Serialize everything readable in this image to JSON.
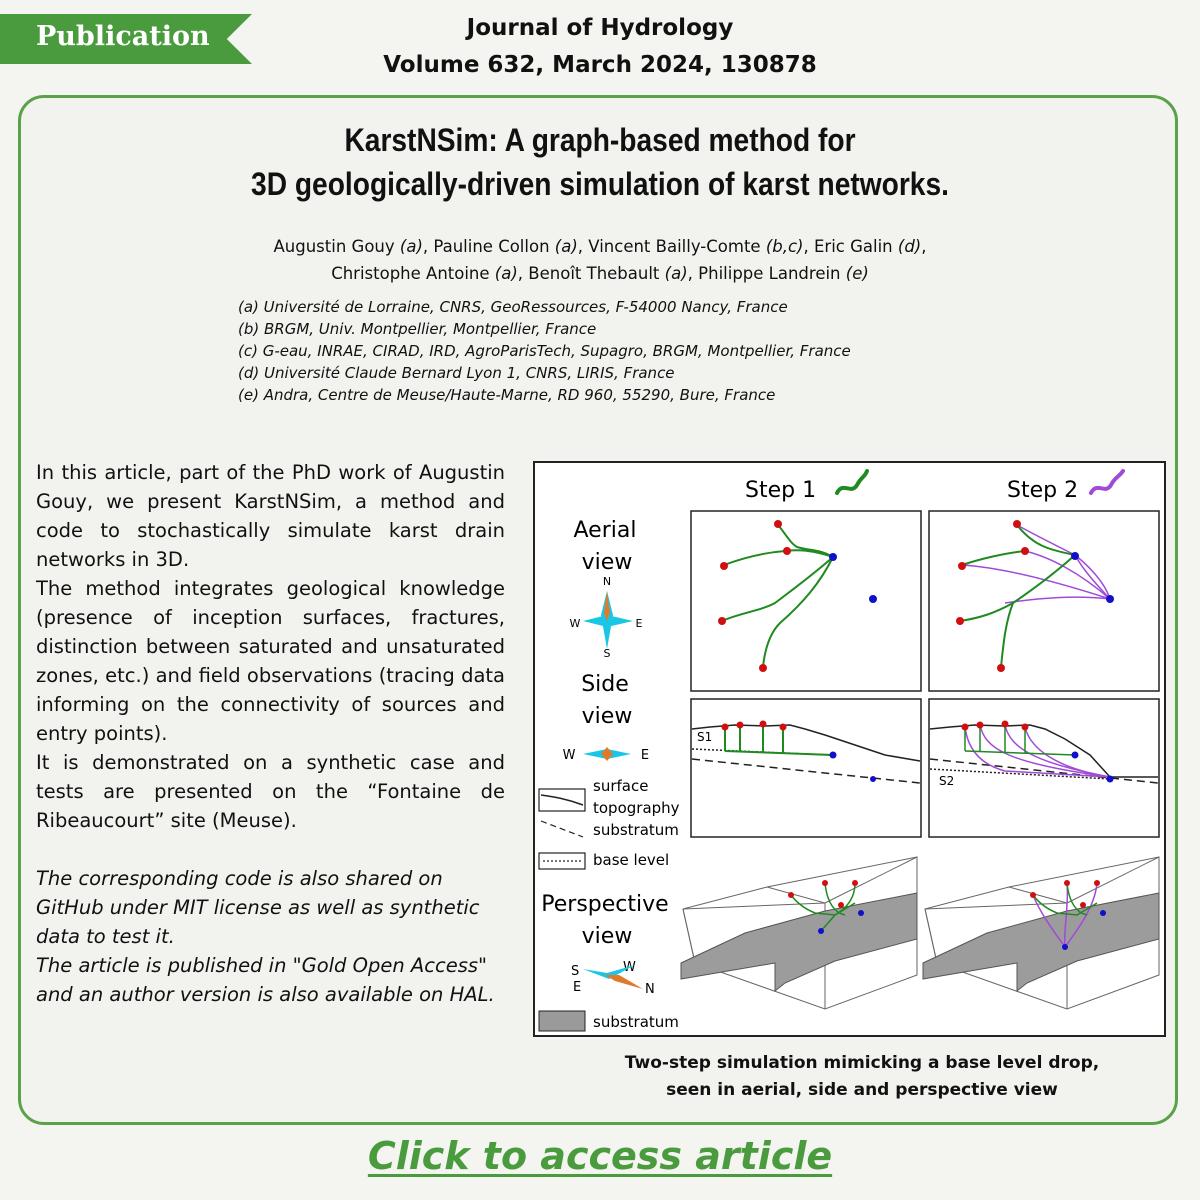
{
  "header": {
    "badge": "Publication",
    "journal_line1": "Journal of Hydrology",
    "journal_line2": "Volume 632, March 2024, 130878"
  },
  "article": {
    "title_line1": "KarstNSim: A graph-based method for",
    "title_line2": "3D geologically-driven simulation of karst networks.",
    "authors": [
      {
        "name": "Augustin Gouy",
        "aff": "(a)"
      },
      {
        "name": "Pauline Collon",
        "aff": "(a)"
      },
      {
        "name": "Vincent Bailly-Comte",
        "aff": "(b,c)"
      },
      {
        "name": "Eric Galin",
        "aff": "(d)"
      },
      {
        "name": "Christophe Antoine",
        "aff": "(a)"
      },
      {
        "name": "Benoît Thebault",
        "aff": "(a)"
      },
      {
        "name": "Philippe Landrein",
        "aff": "(e)"
      }
    ],
    "affiliations": [
      "(a) Université de Lorraine, CNRS, GeoRessources, F-54000 Nancy, France",
      "(b) BRGM, Univ. Montpellier, Montpellier, France",
      "(c) G-eau, INRAE, CIRAD, IRD, AgroParisTech, Supagro, BRGM, Montpellier, France",
      "(d) Université Claude Bernard Lyon 1, CNRS, LIRIS, France",
      "(e) Andra, Centre de Meuse/Haute-Marne, RD 960, 55290, Bure, France"
    ]
  },
  "body": {
    "p1": "In this article, part of the PhD work of Augustin Gouy, we present KarstNSim, a method and code to stochastically simulate karst drain networks in 3D.",
    "p2": "The method integrates geological knowledge (presence of inception surfaces, fractures, distinction between saturated and unsaturated zones, etc.) and field observations (tracing data informing on the connectivity of sources and entry points).",
    "p3": "It is demonstrated on a synthetic case and tests are presented on the “Fontaine de Ribeaucourt” site (Meuse).",
    "p4": "The corresponding code is also shared on GitHub under MIT license as well as synthetic data to test it.",
    "p5": "The article is published in \"Gold Open Access\" and an author version is also available on HAL."
  },
  "figure": {
    "step1": "Step 1",
    "step2": "Step 2",
    "aerial_1": "Aerial",
    "aerial_2": "view",
    "side_1": "Side",
    "side_2": "view",
    "persp_1": "Perspective",
    "persp_2": "view",
    "compass_n": "N",
    "compass_s": "S",
    "compass_e": "E",
    "compass_w": "W",
    "legend_surface_1": "surface",
    "legend_surface_2": "topography",
    "legend_substratum": "substratum",
    "legend_base": "base level",
    "legend_substratum_3d": "substratum",
    "s1_label": "S1",
    "s2_label": "S2",
    "colors": {
      "step1": "#1f8a1f",
      "step2": "#a04ad8",
      "inlet": "#d01010",
      "outlet": "#1010c8",
      "compass_ns": "#19c6e6",
      "compass_ew": "#e07a2a"
    }
  },
  "caption_line1": "Two-step simulation mimicking a base level drop,",
  "caption_line2": "seen in aerial, side and perspective view",
  "cta": "Click to access article"
}
